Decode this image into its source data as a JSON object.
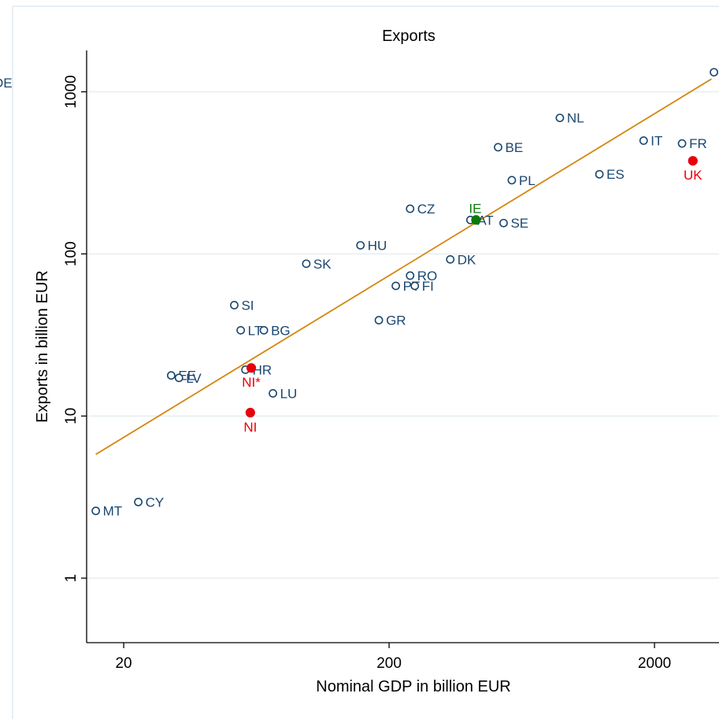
{
  "chart_data": {
    "type": "scatter",
    "title": "Exports",
    "xlabel": "Nominal GDP in billion EUR",
    "ylabel": "Exports in billion EUR",
    "x_scale": "log",
    "y_scale": "log",
    "xlim": [
      14.5,
      3500
    ],
    "ylim": [
      0.4,
      1800
    ],
    "x_ticks": [
      {
        "value": 20,
        "label": "20"
      },
      {
        "value": 200,
        "label": "200"
      },
      {
        "value": 2000,
        "label": "2000"
      }
    ],
    "y_ticks": [
      {
        "value": 1,
        "label": "1"
      },
      {
        "value": 10,
        "label": "10"
      },
      {
        "value": 100,
        "label": "100"
      },
      {
        "value": 1000,
        "label": "1000"
      }
    ],
    "grid": "horizontal",
    "colors": {
      "hollow": "#1a476f",
      "highlight_red": "#e8000b",
      "highlight_green": "#0a7a0a",
      "fit_line": "#d4860f",
      "grid": "#e6eef2"
    },
    "fit_line": {
      "x": [
        15.7,
        3280
      ],
      "y": [
        5.8,
        1200
      ]
    },
    "points": [
      {
        "label": "MT",
        "x": 15.7,
        "y": 2.6,
        "style": "hollow",
        "label_pos": "right"
      },
      {
        "label": "CY",
        "x": 22.7,
        "y": 2.95,
        "style": "hollow",
        "label_pos": "right"
      },
      {
        "label": "EE",
        "x": 30.2,
        "y": 17.8,
        "style": "hollow",
        "label_pos": "right"
      },
      {
        "label": "LV",
        "x": 32.3,
        "y": 17.2,
        "style": "hollow",
        "label_pos": "right"
      },
      {
        "label": "SI",
        "x": 52.2,
        "y": 48.3,
        "style": "hollow",
        "label_pos": "right"
      },
      {
        "label": "LT",
        "x": 55.2,
        "y": 33.8,
        "style": "hollow",
        "label_pos": "right"
      },
      {
        "label": "BG",
        "x": 67.5,
        "y": 33.8,
        "style": "hollow",
        "label_pos": "right"
      },
      {
        "label": "HR",
        "x": 57.5,
        "y": 19.3,
        "style": "hollow",
        "label_pos": "right"
      },
      {
        "label": "LU",
        "x": 73.0,
        "y": 13.8,
        "style": "hollow",
        "label_pos": "right"
      },
      {
        "label": "SK",
        "x": 97.5,
        "y": 87.0,
        "style": "hollow",
        "label_pos": "right"
      },
      {
        "label": "HU",
        "x": 156.0,
        "y": 113.0,
        "style": "hollow",
        "label_pos": "right"
      },
      {
        "label": "GR",
        "x": 183.0,
        "y": 39.0,
        "style": "hollow",
        "label_pos": "right"
      },
      {
        "label": "PT",
        "x": 212.0,
        "y": 63.5,
        "style": "hollow",
        "label_pos": "right"
      },
      {
        "label": "FI",
        "x": 250.0,
        "y": 63.5,
        "style": "hollow",
        "label_pos": "right"
      },
      {
        "label": "RO",
        "x": 240.0,
        "y": 73.5,
        "style": "hollow",
        "label_pos": "right"
      },
      {
        "label": "CZ",
        "x": 240.0,
        "y": 190.0,
        "style": "hollow",
        "label_pos": "right"
      },
      {
        "label": "DK",
        "x": 340.0,
        "y": 92.5,
        "style": "hollow",
        "label_pos": "right"
      },
      {
        "label": "AT",
        "x": 405.0,
        "y": 162.0,
        "style": "hollow",
        "label_pos": "right"
      },
      {
        "label": "IE",
        "x": 425.0,
        "y": 162.0,
        "style": "filled_green",
        "label_pos": "above"
      },
      {
        "label": "SE",
        "x": 540.0,
        "y": 155.0,
        "style": "hollow",
        "label_pos": "right"
      },
      {
        "label": "BE",
        "x": 515.0,
        "y": 455.0,
        "style": "hollow",
        "label_pos": "right"
      },
      {
        "label": "PL",
        "x": 580.0,
        "y": 285.0,
        "style": "hollow",
        "label_pos": "right"
      },
      {
        "label": "NL",
        "x": 880.0,
        "y": 690.0,
        "style": "hollow",
        "label_pos": "right"
      },
      {
        "label": "ES",
        "x": 1240.0,
        "y": 310.0,
        "style": "hollow",
        "label_pos": "right"
      },
      {
        "label": "IT",
        "x": 1820.0,
        "y": 500.0,
        "style": "hollow",
        "label_pos": "right"
      },
      {
        "label": "FR",
        "x": 2540.0,
        "y": 480.0,
        "style": "hollow",
        "label_pos": "right"
      },
      {
        "label": "UK",
        "x": 2790.0,
        "y": 375.0,
        "style": "filled_red",
        "label_pos": "below"
      },
      {
        "label": "DE",
        "x": 3350.0,
        "y": 1320.0,
        "style": "hollow",
        "label_pos": "none"
      },
      {
        "label": "NI*",
        "x": 60.5,
        "y": 19.8,
        "style": "filled_red",
        "label_pos": "below"
      },
      {
        "label": "NI",
        "x": 60.0,
        "y": 10.5,
        "style": "filled_red",
        "label_pos": "below"
      }
    ]
  }
}
